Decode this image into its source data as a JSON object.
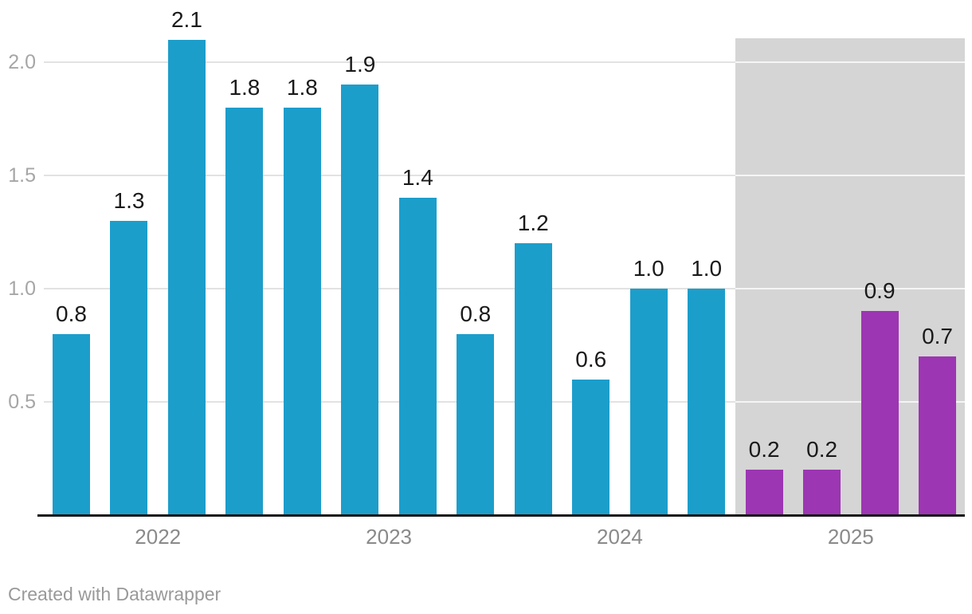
{
  "chart_data": {
    "type": "bar",
    "title": "",
    "xlabel": "",
    "ylabel": "",
    "groups": [
      {
        "label": "2022",
        "values": [
          0.8,
          1.3,
          2.1,
          1.8
        ],
        "highlighted": false
      },
      {
        "label": "2023",
        "values": [
          1.8,
          1.9,
          1.4,
          0.8
        ],
        "highlighted": false
      },
      {
        "label": "2024",
        "values": [
          1.2,
          0.6,
          1.0,
          1.0
        ],
        "highlighted": false
      },
      {
        "label": "2025",
        "values": [
          0.2,
          0.2,
          0.9,
          0.7
        ],
        "highlighted": true
      }
    ],
    "value_labels": [
      "0.8",
      "1.3",
      "2.1",
      "1.8",
      "1.8",
      "1.9",
      "1.4",
      "0.8",
      "1.2",
      "0.6",
      "1.0",
      "1.0",
      "0.2",
      "0.2",
      "0.9",
      "0.7"
    ],
    "y_axis": {
      "ticks": [
        0.5,
        1.0,
        1.5,
        2.0
      ],
      "tick_labels": [
        "0.5",
        "1.0",
        "1.5",
        "2.0"
      ],
      "range": [
        0,
        2.2
      ]
    },
    "x_axis": {
      "tick_labels": [
        "2022",
        "2023",
        "2024",
        "2025"
      ]
    },
    "legend": null,
    "grid": "horizontal",
    "highlight_band_over_group": "2025",
    "colors": {
      "bar_default": "#1c9ecb",
      "bar_highlight": "#9c36b2",
      "highlight_band": "#d5d5d5",
      "grid_line": "#e2e2e2",
      "grid_line_on_band": "rgba(255,255,255,0.75)",
      "axis_line": "#181818",
      "value_label": "#1a1a1a",
      "y_tick_label": "#a6a6a6",
      "x_tick_label": "#8a8a8a",
      "footer": "#999999",
      "background": "#ffffff"
    }
  },
  "footer": {
    "attribution": "Created with Datawrapper"
  }
}
